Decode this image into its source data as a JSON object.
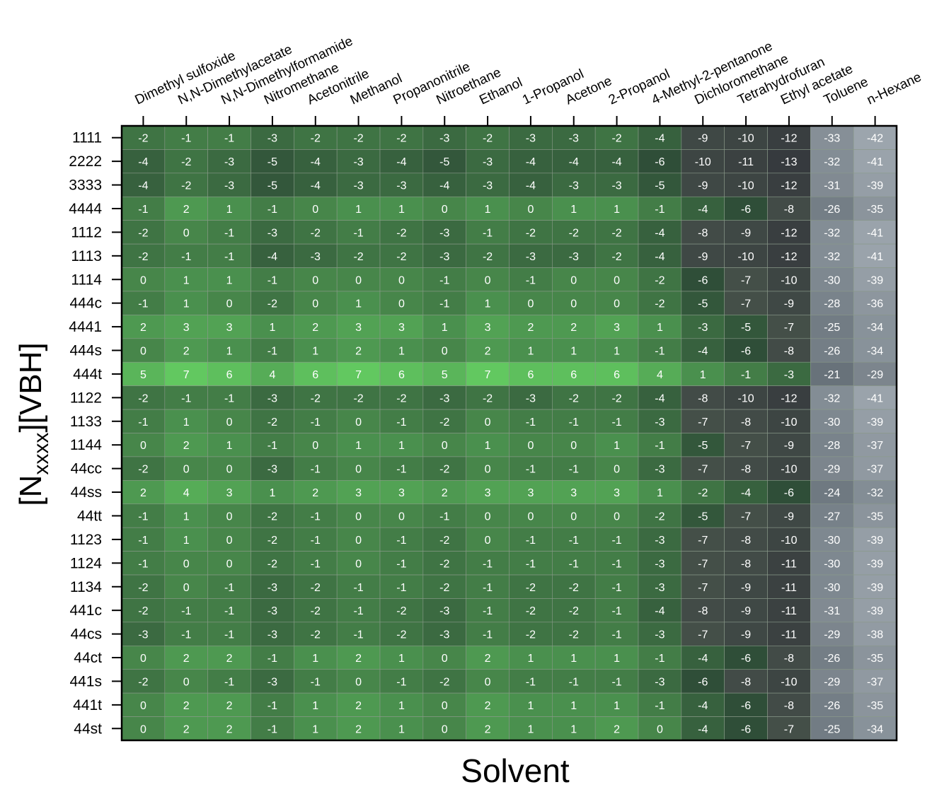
{
  "chart_data": {
    "type": "heatmap",
    "xlabel": "Solvent",
    "ylabel": {
      "prefix": "[N",
      "subscript": "xxxx",
      "suffix": "][VBH]"
    },
    "columns": [
      "Dimethyl sulfoxide",
      "N,N-Dimethylacetate",
      "N,N-Dimethylformamide",
      "Nitromethane",
      "Acetonitrile",
      "Methanol",
      "Propanonitrile",
      "Nitroethane",
      "Ethanol",
      "1-Propanol",
      "Acetone",
      "2-Propanol",
      "4-Methyl-2-pentanone",
      "Dichloromethane",
      "Tetrahydrofuran",
      "Ethyl acetate",
      "Toluene",
      "n-Hexane"
    ],
    "rows": [
      "1111",
      "2222",
      "3333",
      "4444",
      "1112",
      "1113",
      "1114",
      "444c",
      "4441",
      "444s",
      "444t",
      "1122",
      "1133",
      "1144",
      "44cc",
      "44ss",
      "44tt",
      "1123",
      "1124",
      "1134",
      "441c",
      "44cs",
      "44ct",
      "441s",
      "441t",
      "44st"
    ],
    "values": [
      [
        -2,
        -1,
        -1,
        -3,
        -2,
        -2,
        -2,
        -3,
        -2,
        -3,
        -3,
        -2,
        -4,
        -9,
        -10,
        -12,
        -33,
        -42
      ],
      [
        -4,
        -2,
        -3,
        -5,
        -4,
        -3,
        -4,
        -5,
        -3,
        -4,
        -4,
        -4,
        -6,
        -10,
        -11,
        -13,
        -32,
        -41
      ],
      [
        -4,
        -2,
        -3,
        -5,
        -4,
        -3,
        -3,
        -4,
        -3,
        -4,
        -3,
        -3,
        -5,
        -9,
        -10,
        -12,
        -31,
        -39
      ],
      [
        -1,
        2,
        1,
        -1,
        0,
        1,
        1,
        0,
        1,
        0,
        1,
        1,
        -1,
        -4,
        -6,
        -8,
        -26,
        -35
      ],
      [
        -2,
        0,
        -1,
        -3,
        -2,
        -1,
        -2,
        -3,
        -1,
        -2,
        -2,
        -2,
        -4,
        -8,
        -9,
        -12,
        -32,
        -41
      ],
      [
        -2,
        -1,
        -1,
        -4,
        -3,
        -2,
        -2,
        -3,
        -2,
        -3,
        -3,
        -2,
        -4,
        -9,
        -10,
        -12,
        -32,
        -41
      ],
      [
        0,
        1,
        1,
        -1,
        0,
        0,
        0,
        -1,
        0,
        -1,
        0,
        0,
        -2,
        -6,
        -7,
        -10,
        -30,
        -39
      ],
      [
        -1,
        1,
        0,
        -2,
        0,
        1,
        0,
        -1,
        1,
        0,
        0,
        0,
        -2,
        -5,
        -7,
        -9,
        -28,
        -36
      ],
      [
        2,
        3,
        3,
        1,
        2,
        3,
        3,
        1,
        3,
        2,
        2,
        3,
        1,
        -3,
        -5,
        -7,
        -25,
        -34
      ],
      [
        0,
        2,
        1,
        -1,
        1,
        2,
        1,
        0,
        2,
        1,
        1,
        1,
        -1,
        -4,
        -6,
        -8,
        -26,
        -34
      ],
      [
        5,
        7,
        6,
        4,
        6,
        7,
        6,
        5,
        7,
        6,
        6,
        6,
        4,
        1,
        -1,
        -3,
        -21,
        -29
      ],
      [
        -2,
        -1,
        -1,
        -3,
        -2,
        -2,
        -2,
        -3,
        -2,
        -3,
        -2,
        -2,
        -4,
        -8,
        -10,
        -12,
        -32,
        -41
      ],
      [
        -1,
        1,
        0,
        -2,
        -1,
        0,
        -1,
        -2,
        0,
        -1,
        -1,
        -1,
        -3,
        -7,
        -8,
        -10,
        -30,
        -39
      ],
      [
        0,
        2,
        1,
        -1,
        0,
        1,
        1,
        0,
        1,
        0,
        0,
        1,
        -1,
        -5,
        -7,
        -9,
        -28,
        -37
      ],
      [
        -2,
        0,
        0,
        -3,
        -1,
        0,
        -1,
        -2,
        0,
        -1,
        -1,
        0,
        -3,
        -7,
        -8,
        -10,
        -29,
        -37
      ],
      [
        2,
        4,
        3,
        1,
        2,
        3,
        3,
        2,
        3,
        3,
        3,
        3,
        1,
        -2,
        -4,
        -6,
        -24,
        -32
      ],
      [
        -1,
        1,
        0,
        -2,
        -1,
        0,
        0,
        -1,
        0,
        0,
        0,
        0,
        -2,
        -5,
        -7,
        -9,
        -27,
        -35
      ],
      [
        -1,
        1,
        0,
        -2,
        -1,
        0,
        -1,
        -2,
        0,
        -1,
        -1,
        -1,
        -3,
        -7,
        -8,
        -10,
        -30,
        -39
      ],
      [
        -1,
        0,
        0,
        -2,
        -1,
        0,
        -1,
        -2,
        -1,
        -1,
        -1,
        -1,
        -3,
        -7,
        -8,
        -11,
        -30,
        -39
      ],
      [
        -2,
        0,
        -1,
        -3,
        -2,
        -1,
        -1,
        -2,
        -1,
        -2,
        -2,
        -1,
        -3,
        -7,
        -9,
        -11,
        -30,
        -39
      ],
      [
        -2,
        -1,
        -1,
        -3,
        -2,
        -1,
        -2,
        -3,
        -1,
        -2,
        -2,
        -1,
        -4,
        -8,
        -9,
        -11,
        -31,
        -39
      ],
      [
        -3,
        -1,
        -1,
        -3,
        -2,
        -1,
        -2,
        -3,
        -1,
        -2,
        -2,
        -1,
        -3,
        -7,
        -9,
        -11,
        -29,
        -38
      ],
      [
        0,
        2,
        2,
        -1,
        1,
        2,
        1,
        0,
        2,
        1,
        1,
        1,
        -1,
        -4,
        -6,
        -8,
        -26,
        -35
      ],
      [
        -2,
        0,
        -1,
        -3,
        -1,
        0,
        -1,
        -2,
        0,
        -1,
        -1,
        -1,
        -3,
        -6,
        -8,
        -10,
        -29,
        -37
      ],
      [
        0,
        2,
        2,
        -1,
        1,
        2,
        1,
        0,
        2,
        1,
        1,
        1,
        -1,
        -4,
        -6,
        -8,
        -26,
        -35
      ],
      [
        0,
        2,
        2,
        -1,
        1,
        2,
        1,
        0,
        2,
        1,
        1,
        2,
        0,
        -4,
        -6,
        -7,
        -25,
        -34
      ]
    ],
    "colors": {
      "positive_high": "#5cc85c",
      "positive_mid": "#4caf50",
      "negative_low": "#2f5a37",
      "dark": "#3c3e42",
      "gray_light": "#9aa3ab",
      "grid_line": "#8a9a8a",
      "border": "#000000"
    }
  }
}
